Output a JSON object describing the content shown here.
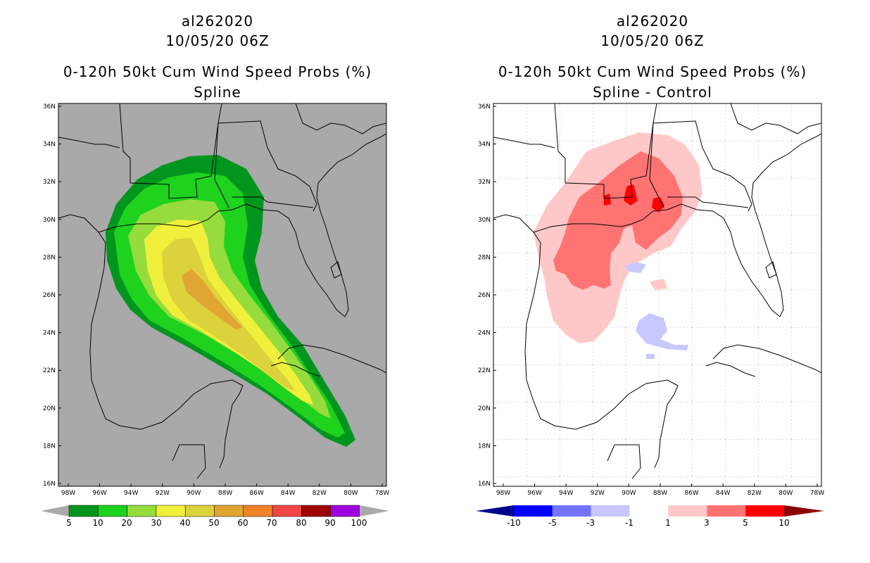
{
  "left": {
    "title_id": "al262020",
    "title_date": "10/05/20 06Z",
    "title_field": "0-120h 50kt Cum Wind Speed Probs (%)",
    "title_sub": "Spline",
    "colorbar_labels": [
      "5",
      "10",
      "20",
      "30",
      "40",
      "50",
      "60",
      "70",
      "80",
      "90",
      "100"
    ],
    "colorbar_colors": [
      "#00961e",
      "#1ed21e",
      "#96dc3c",
      "#f0f03c",
      "#dcd23c",
      "#e1a532",
      "#f08228",
      "#f04646",
      "#a00000",
      "#a000e1"
    ],
    "map_background": "#a9a9a9"
  },
  "right": {
    "title_id": "al262020",
    "title_date": "10/05/20 06Z",
    "title_field": "0-120h 50kt Cum Wind Speed Probs (%)",
    "title_sub": "Spline - Control",
    "colorbar_labels": [
      "-10",
      "-5",
      "-3",
      "-1",
      "1",
      "3",
      "5",
      "10"
    ],
    "colorbar_colors": [
      "#00008c",
      "#0000ff",
      "#7373ff",
      "#c8c8ff",
      "#ffffff",
      "#ffc8c8",
      "#ff7373",
      "#ff0000",
      "#8c0000"
    ],
    "map_background": "#ffffff"
  },
  "axes": {
    "lat_labels": [
      "36N",
      "34N",
      "32N",
      "30N",
      "28N",
      "26N",
      "24N",
      "22N",
      "20N",
      "18N",
      "16N"
    ],
    "lon_labels": [
      "98W",
      "96W",
      "94W",
      "92W",
      "90W",
      "88W",
      "86W",
      "84W",
      "82W",
      "80W",
      "78W"
    ]
  }
}
